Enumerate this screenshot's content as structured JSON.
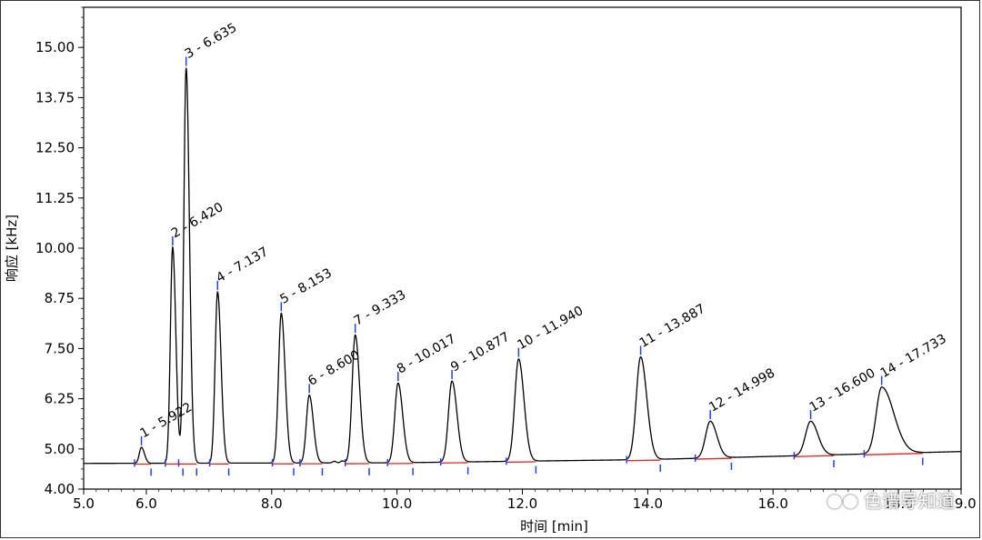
{
  "chart_data": {
    "type": "line",
    "xlabel": "时间 [min]",
    "ylabel": "响应 [kHz]",
    "xlim": [
      5.0,
      19.0
    ],
    "ylim": [
      4.0,
      16.0
    ],
    "x_ticks": [
      "5.0",
      "6.0",
      "8.0",
      "10.0",
      "12.0",
      "14.0",
      "16.0",
      "18.0",
      "19.0"
    ],
    "y_ticks": [
      "4.00",
      "5.00",
      "6.25",
      "7.50",
      "8.75",
      "10.00",
      "11.25",
      "12.50",
      "13.75",
      "15.00"
    ],
    "grid": false,
    "baseline_color": "#e8231e",
    "trace_color": "#000000",
    "marker_color": "#1f3fff",
    "peaks": [
      {
        "label": "1 - 5.922",
        "rt": 5.922,
        "height": 5.0
      },
      {
        "label": "2 - 6.420",
        "rt": 6.42,
        "height": 9.98
      },
      {
        "label": "3 - 6.635",
        "rt": 6.635,
        "height": 14.45
      },
      {
        "label": "4 - 7.137",
        "rt": 7.137,
        "height": 8.87
      },
      {
        "label": "5 - 8.153",
        "rt": 8.153,
        "height": 8.34
      },
      {
        "label": "6 - 8.600",
        "rt": 8.6,
        "height": 6.3
      },
      {
        "label": "7 - 9.333",
        "rt": 9.333,
        "height": 7.8
      },
      {
        "label": "8 - 10.017",
        "rt": 10.017,
        "height": 6.6
      },
      {
        "label": "9 - 10.877",
        "rt": 10.877,
        "height": 6.65
      },
      {
        "label": "10 - 11.940",
        "rt": 11.94,
        "height": 7.2
      },
      {
        "label": "11 - 13.887",
        "rt": 13.887,
        "height": 7.25
      },
      {
        "label": "12 - 14.998",
        "rt": 14.998,
        "height": 5.65
      },
      {
        "label": "13 - 16.600",
        "rt": 16.6,
        "height": 5.65
      },
      {
        "label": "14 - 17.733",
        "rt": 17.733,
        "height": 6.5
      }
    ]
  },
  "watermark": {
    "text": "色谱导知道"
  }
}
